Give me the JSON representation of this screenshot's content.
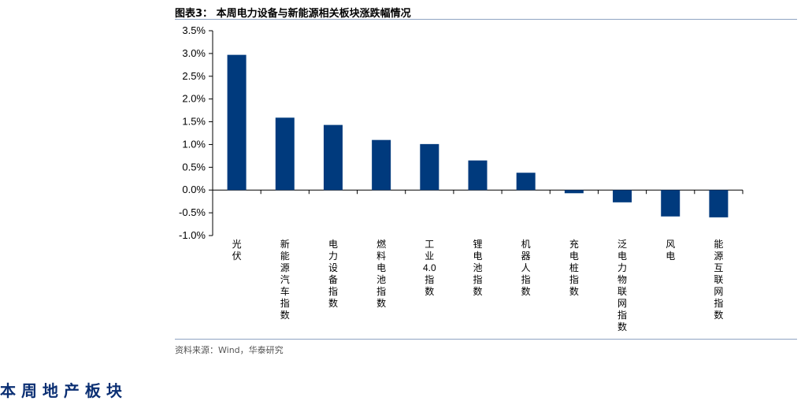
{
  "header": {
    "title": "图表3：  本周电力设备与新能源相关板块涨跌幅情况"
  },
  "footer": {
    "source": "资料来源：Wind，华泰研究"
  },
  "bottom": {
    "heading": "本 周 地 产 板 块"
  },
  "colors": {
    "bar": "#003a7d",
    "axis": "#000000",
    "rule": "#8ea3c2"
  },
  "chart_data": {
    "type": "bar",
    "title": "",
    "xlabel": "",
    "ylabel": "",
    "grid": false,
    "ylim": [
      -1.0,
      3.5
    ],
    "yticks": [
      3.5,
      3.0,
      2.5,
      2.0,
      1.5,
      1.0,
      0.5,
      0.0,
      -0.5,
      -1.0
    ],
    "ytick_labels": [
      "3.5%",
      "3.0%",
      "2.5%",
      "2.0%",
      "1.5%",
      "1.0%",
      "0.5%",
      "0.0%",
      "-0.5%",
      "-1.0%"
    ],
    "categories": [
      "光伏",
      "新能源汽车指数",
      "电力设备指数",
      "燃料电池指数",
      "工业4.0指数",
      "锂电池指数",
      "机器人指数",
      "充电桩指数",
      "泛电力物联网指数",
      "风电",
      "能源互联网指数"
    ],
    "values": [
      2.97,
      1.59,
      1.43,
      1.1,
      1.01,
      0.65,
      0.38,
      -0.07,
      -0.27,
      -0.58,
      -0.6
    ]
  }
}
